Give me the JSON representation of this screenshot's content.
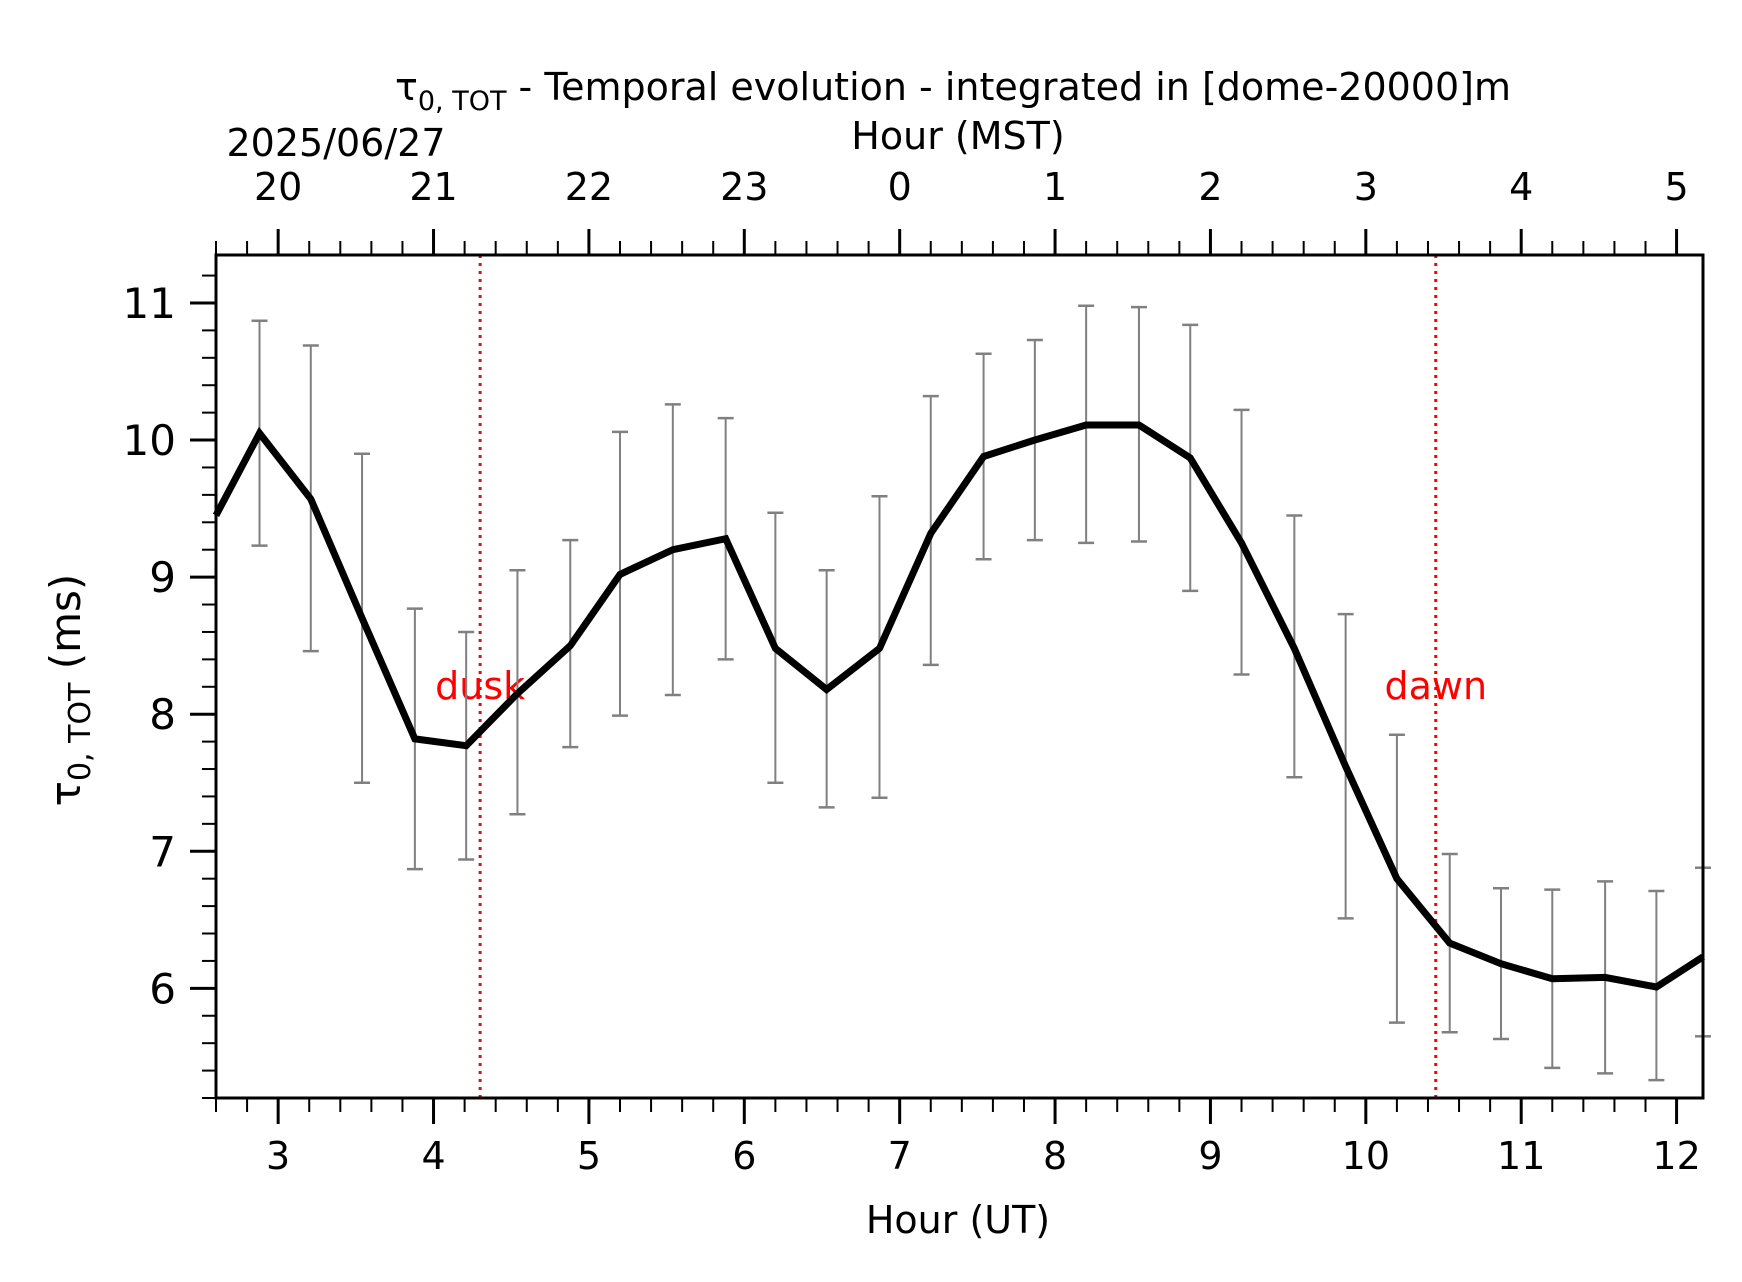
{
  "chart_data": {
    "type": "line",
    "title_prefix": "τ",
    "title_sub": "0, TOT",
    "title_rest": " - Temporal evolution - integrated in [dome-20000]m",
    "xlabel": "Hour (UT)",
    "ylabel_sym": "τ",
    "ylabel_sub": "0, TOT",
    "ylabel_rest": " (ms)",
    "top_xlabel": "Hour (MST)",
    "top_date": "2025/06/27",
    "xlim": [
      2.6,
      12.17
    ],
    "ylim": [
      5.2,
      11.35
    ],
    "x_ticks": [
      3,
      4,
      5,
      6,
      7,
      8,
      9,
      10,
      11,
      12
    ],
    "x_tick_labels": [
      "3",
      "4",
      "5",
      "6",
      "7",
      "8",
      "9",
      "10",
      "11",
      "12"
    ],
    "y_ticks": [
      6,
      7,
      8,
      9,
      10,
      11
    ],
    "y_tick_labels": [
      "6",
      "7",
      "8",
      "9",
      "10",
      "11"
    ],
    "top_ticks_ut": [
      3,
      4,
      5,
      6,
      7,
      8,
      9,
      10,
      11,
      12
    ],
    "top_tick_labels": [
      "20",
      "21",
      "22",
      "23",
      "0",
      "1",
      "2",
      "3",
      "4",
      "5"
    ],
    "series": [
      {
        "color": "#000000",
        "x": [
          2.6,
          2.88,
          3.21,
          3.54,
          3.88,
          4.21,
          4.54,
          4.88,
          5.2,
          5.54,
          5.88,
          6.2,
          6.53,
          6.87,
          7.2,
          7.54,
          7.87,
          8.2,
          8.54,
          8.87,
          9.2,
          9.54,
          9.87,
          10.2,
          10.54,
          10.87,
          11.2,
          11.54,
          11.87,
          12.17
        ],
        "y": [
          9.45,
          10.05,
          9.57,
          8.7,
          7.82,
          7.77,
          8.15,
          8.5,
          9.02,
          9.2,
          9.28,
          8.48,
          8.18,
          8.48,
          9.32,
          9.88,
          10.0,
          10.11,
          10.11,
          9.87,
          9.25,
          8.48,
          7.62,
          6.8,
          6.33,
          6.18,
          6.07,
          6.08,
          6.01,
          6.23
        ],
        "err_low": [
          null,
          9.23,
          8.46,
          7.5,
          6.87,
          6.94,
          7.27,
          7.76,
          7.99,
          8.14,
          8.4,
          7.5,
          7.32,
          7.39,
          8.36,
          9.13,
          9.27,
          9.25,
          9.26,
          8.9,
          8.29,
          7.54,
          6.51,
          5.75,
          5.68,
          5.63,
          5.42,
          5.38,
          5.33,
          5.65
        ],
        "err_high": [
          null,
          10.87,
          10.69,
          9.9,
          8.77,
          8.6,
          9.05,
          9.27,
          10.06,
          10.26,
          10.16,
          9.47,
          9.05,
          9.59,
          10.32,
          10.63,
          10.73,
          10.98,
          10.97,
          10.84,
          10.22,
          9.45,
          8.73,
          7.85,
          6.98,
          6.73,
          6.72,
          6.78,
          6.71,
          6.88
        ]
      }
    ],
    "error_bar_color": "#808080",
    "markers": [
      {
        "x": 4.3,
        "label": "dusk",
        "color": "#ff0000"
      },
      {
        "x": 10.45,
        "label": "dawn",
        "color": "#ff0000"
      }
    ]
  }
}
